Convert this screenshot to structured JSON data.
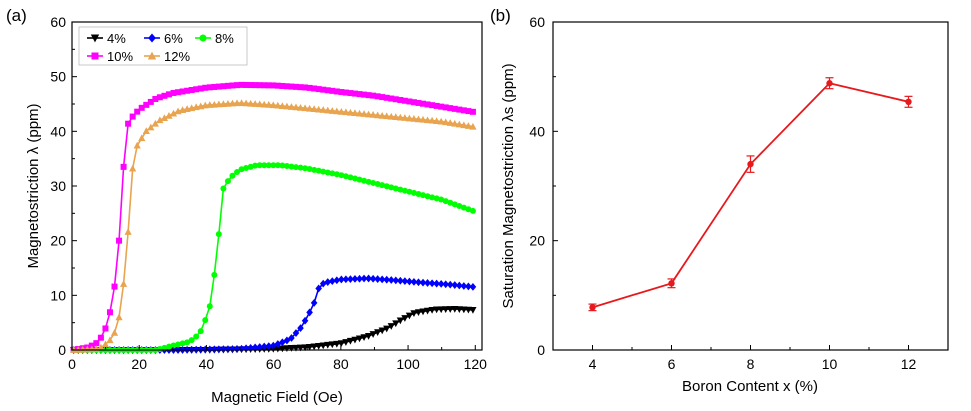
{
  "chart_data": [
    {
      "panel": "(a)",
      "type": "scatter",
      "xlabel": "Magnetic Field (Oe)",
      "ylabel": "Magnetostriction λ (ppm)",
      "xlim": [
        0,
        122
      ],
      "ylim": [
        0,
        60
      ],
      "xticks": [
        0,
        20,
        40,
        60,
        80,
        100,
        120
      ],
      "yticks": [
        0,
        10,
        20,
        30,
        40,
        50,
        60
      ],
      "legend_position": "top-left",
      "series": [
        {
          "name": "4%",
          "color": "#000000",
          "marker": "triangle-down",
          "points": [
            [
              0,
              0
            ],
            [
              20,
              0
            ],
            [
              40,
              0
            ],
            [
              60,
              0.2
            ],
            [
              70,
              0.5
            ],
            [
              80,
              1.2
            ],
            [
              88,
              2.5
            ],
            [
              94,
              4
            ],
            [
              98,
              5.5
            ],
            [
              102,
              6.8
            ],
            [
              108,
              7.4
            ],
            [
              114,
              7.5
            ],
            [
              120,
              7.3
            ]
          ]
        },
        {
          "name": "6%",
          "color": "#0000ff",
          "marker": "diamond",
          "points": [
            [
              0,
              0
            ],
            [
              30,
              0
            ],
            [
              50,
              0.2
            ],
            [
              60,
              0.8
            ],
            [
              65,
              2
            ],
            [
              68,
              4
            ],
            [
              70,
              6
            ],
            [
              72,
              8.5
            ],
            [
              73,
              11
            ],
            [
              75,
              12.3
            ],
            [
              80,
              12.9
            ],
            [
              88,
              13.1
            ],
            [
              95,
              12.8
            ],
            [
              105,
              12.3
            ],
            [
              112,
              12
            ],
            [
              120,
              11.5
            ]
          ]
        },
        {
          "name": "8%",
          "color": "#00ff00",
          "marker": "circle",
          "points": [
            [
              0,
              0
            ],
            [
              25,
              0
            ],
            [
              30,
              0.8
            ],
            [
              35,
              1.5
            ],
            [
              38,
              3
            ],
            [
              40,
              6
            ],
            [
              41,
              8
            ],
            [
              42,
              12
            ],
            [
              43,
              17
            ],
            [
              44,
              23
            ],
            [
              45,
              29.5
            ],
            [
              47,
              31.5
            ],
            [
              50,
              33
            ],
            [
              55,
              33.8
            ],
            [
              62,
              33.8
            ],
            [
              70,
              33.2
            ],
            [
              80,
              32
            ],
            [
              90,
              30.5
            ],
            [
              100,
              29
            ],
            [
              110,
              27.5
            ],
            [
              120,
              25.3
            ]
          ]
        },
        {
          "name": "10%",
          "color": "#ff00ff",
          "marker": "square",
          "points": [
            [
              0,
              0
            ],
            [
              5,
              0.5
            ],
            [
              8,
              1.5
            ],
            [
              10,
              4
            ],
            [
              11,
              6
            ],
            [
              12,
              9
            ],
            [
              13,
              13
            ],
            [
              14,
              20
            ],
            [
              15,
              30
            ],
            [
              16,
              40
            ],
            [
              17,
              42
            ],
            [
              20,
              44
            ],
            [
              25,
              46
            ],
            [
              30,
              47
            ],
            [
              40,
              48
            ],
            [
              50,
              48.5
            ],
            [
              60,
              48.4
            ],
            [
              70,
              48
            ],
            [
              80,
              47.2
            ],
            [
              90,
              46.5
            ],
            [
              100,
              45.5
            ],
            [
              110,
              44.5
            ],
            [
              120,
              43.5
            ]
          ]
        },
        {
          "name": "12%",
          "color": "#e8a44e",
          "marker": "triangle-up",
          "points": [
            [
              0,
              0
            ],
            [
              8,
              0.2
            ],
            [
              11,
              1.5
            ],
            [
              13,
              3.5
            ],
            [
              14,
              6
            ],
            [
              15,
              10
            ],
            [
              16,
              16
            ],
            [
              17,
              24
            ],
            [
              18,
              33
            ],
            [
              19,
              37
            ],
            [
              22,
              40
            ],
            [
              26,
              42
            ],
            [
              32,
              43.8
            ],
            [
              40,
              44.8
            ],
            [
              50,
              45.2
            ],
            [
              60,
              44.8
            ],
            [
              70,
              44.2
            ],
            [
              80,
              43.6
            ],
            [
              90,
              43
            ],
            [
              100,
              42.4
            ],
            [
              110,
              41.8
            ],
            [
              120,
              40.8
            ]
          ]
        }
      ]
    },
    {
      "panel": "(b)",
      "type": "line",
      "xlabel": "Boron Content x (%)",
      "ylabel": "Saturation Magnetostriction λs (ppm)",
      "xlim": [
        3,
        13
      ],
      "ylim": [
        0,
        60
      ],
      "xticks": [
        4,
        6,
        8,
        10,
        12
      ],
      "yticks": [
        0,
        20,
        40,
        60
      ],
      "color": "#e8191c",
      "x": [
        4,
        6,
        8,
        10,
        12
      ],
      "values": [
        7.8,
        12.2,
        34.0,
        48.8,
        45.4
      ],
      "errors": [
        0.6,
        0.8,
        1.5,
        1.0,
        1.0
      ]
    }
  ]
}
